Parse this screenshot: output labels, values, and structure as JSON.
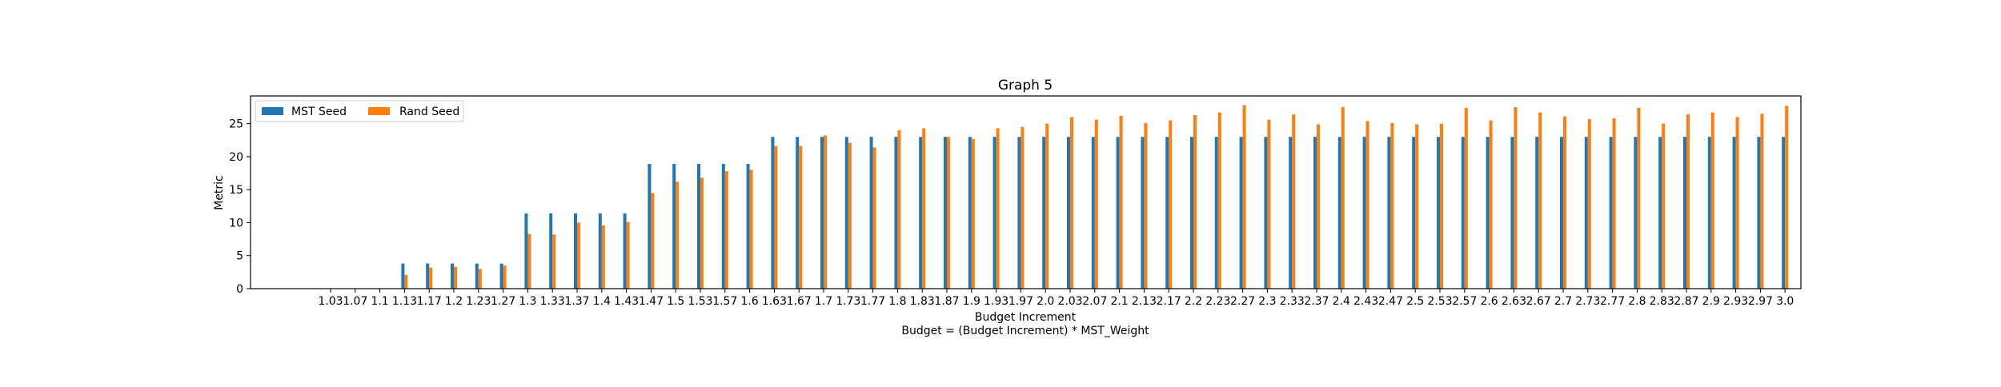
{
  "chart_data": {
    "type": "bar",
    "title": "Graph 5",
    "xlabel": "Budget Increment",
    "xlabel_note": "Budget = (Budget Increment) * MST_Weight",
    "ylabel": "Metric",
    "ylim": [
      0,
      29.2
    ],
    "yticks": [
      0,
      5,
      10,
      15,
      20,
      25
    ],
    "grid": false,
    "legend_position": "top-left",
    "categories": [
      "1.03",
      "1.07",
      "1.1",
      "1.13",
      "1.17",
      "1.2",
      "1.23",
      "1.27",
      "1.3",
      "1.33",
      "1.37",
      "1.4",
      "1.43",
      "1.47",
      "1.5",
      "1.53",
      "1.57",
      "1.6",
      "1.63",
      "1.67",
      "1.7",
      "1.73",
      "1.77",
      "1.8",
      "1.83",
      "1.87",
      "1.9",
      "1.93",
      "1.97",
      "2.0",
      "2.03",
      "2.07",
      "2.1",
      "2.13",
      "2.17",
      "2.2",
      "2.23",
      "2.27",
      "2.3",
      "2.33",
      "2.37",
      "2.4",
      "2.43",
      "2.47",
      "2.5",
      "2.53",
      "2.57",
      "2.6",
      "2.63",
      "2.67",
      "2.7",
      "2.73",
      "2.77",
      "2.8",
      "2.83",
      "2.87",
      "2.9",
      "2.93",
      "2.97",
      "3.0"
    ],
    "series": [
      {
        "name": "MST Seed",
        "color": "#1f77b4",
        "values": [
          0,
          0,
          0,
          3.8,
          3.8,
          3.8,
          3.8,
          3.8,
          11.4,
          11.4,
          11.4,
          11.4,
          11.4,
          18.9,
          18.9,
          18.9,
          18.9,
          18.9,
          23.0,
          23.0,
          23.0,
          23.0,
          23.0,
          23.0,
          23.0,
          23.0,
          23.0,
          23.0,
          23.0,
          23.0,
          23.0,
          23.0,
          23.0,
          23.0,
          23.0,
          23.0,
          23.0,
          23.0,
          23.0,
          23.0,
          23.0,
          23.0,
          23.0,
          23.0,
          23.0,
          23.0,
          23.0,
          23.0,
          23.0,
          23.0,
          23.0,
          23.0,
          23.0,
          23.0,
          23.0,
          23.0,
          23.0,
          23.0,
          23.0,
          23.0
        ]
      },
      {
        "name": "Rand Seed",
        "color": "#ff7f0e",
        "values": [
          0,
          0,
          0,
          2.1,
          3.2,
          3.3,
          3.0,
          3.5,
          8.3,
          8.2,
          10.0,
          9.6,
          10.1,
          14.5,
          16.2,
          16.8,
          17.8,
          18.0,
          21.6,
          21.6,
          23.2,
          22.1,
          21.4,
          24.0,
          24.3,
          23.0,
          22.7,
          24.3,
          24.5,
          25.0,
          26.0,
          25.6,
          26.2,
          25.1,
          25.5,
          26.3,
          26.7,
          27.8,
          25.6,
          26.4,
          24.9,
          27.5,
          25.4,
          25.1,
          24.9,
          25.0,
          27.4,
          25.5,
          27.5,
          26.7,
          26.1,
          25.7,
          25.8,
          27.4,
          25.0,
          26.4,
          26.7,
          26.0,
          26.5,
          27.7
        ]
      }
    ]
  }
}
